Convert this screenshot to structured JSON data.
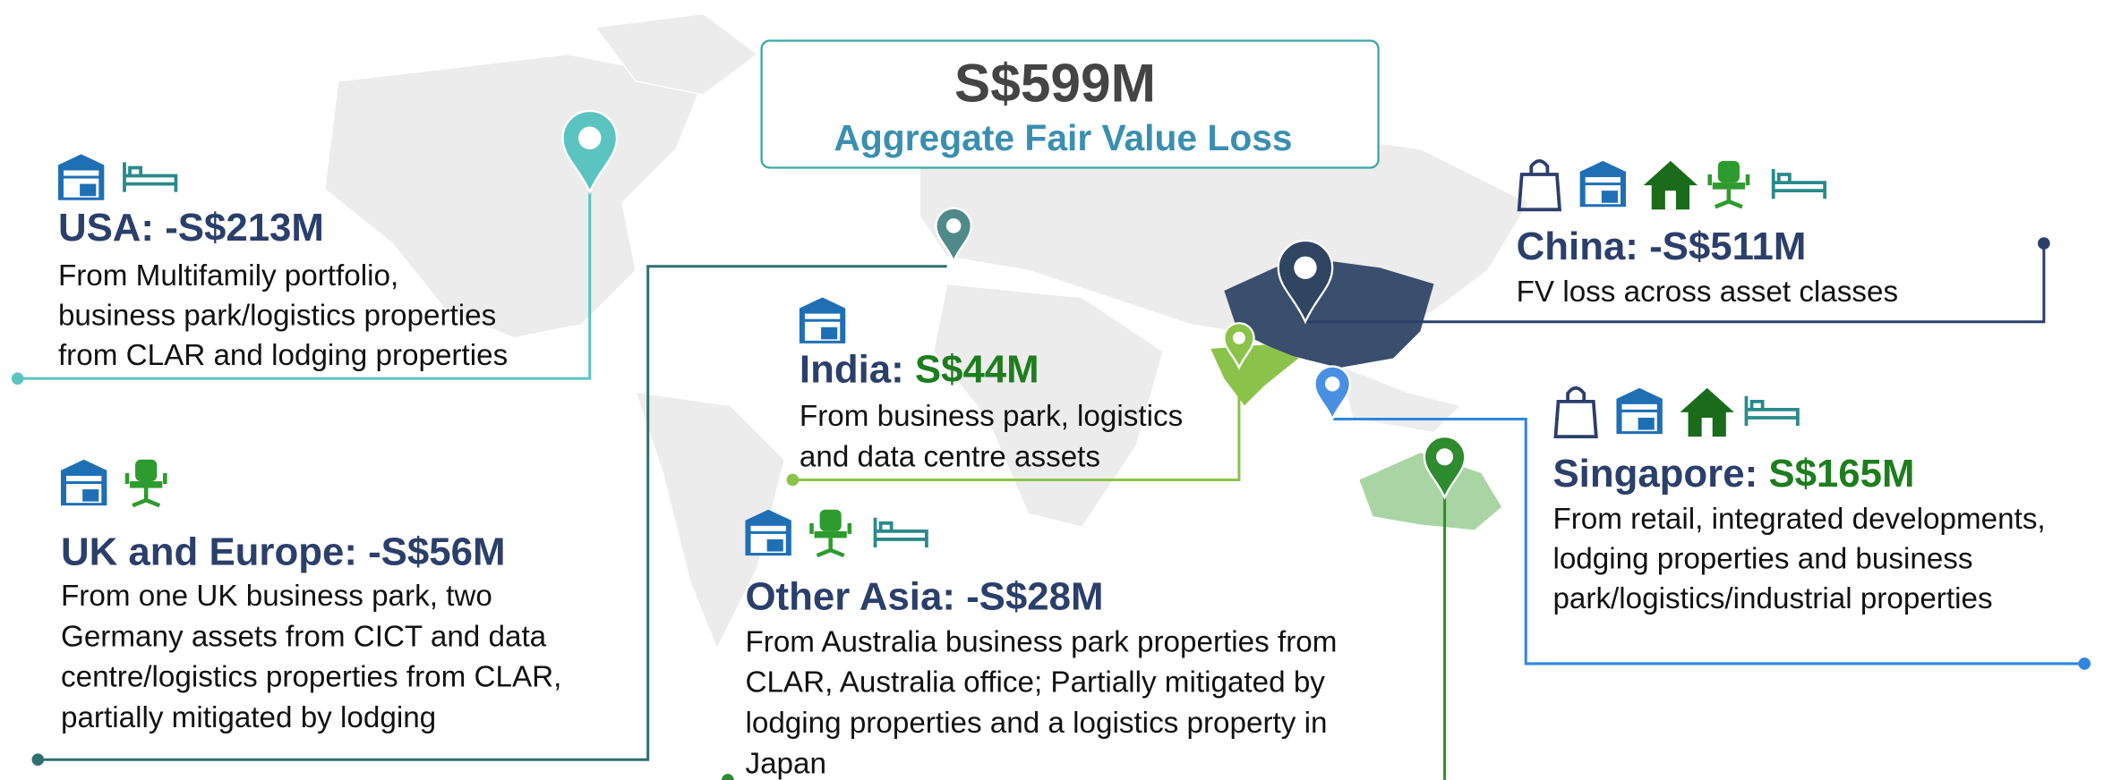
{
  "header": {
    "value": "S$599M",
    "subtitle": "Aggregate Fair Value Loss"
  },
  "regions": [
    {
      "label": "USA:",
      "amount": "-S$213M",
      "description": [
        "From Multifamily portfolio,",
        "business park/logistics properties",
        "from CLAR and lodging properties"
      ]
    },
    {
      "label": "UK and Europe:",
      "amount": "-S$56M",
      "description": [
        "From one UK business park, two",
        "Germany assets from CICT and data",
        "centre/logistics properties from CLAR,",
        "partially mitigated by lodging"
      ]
    },
    {
      "label": "India:",
      "amount": "S$44M",
      "description": [
        "From business park, logistics",
        "and data centre assets"
      ]
    },
    {
      "label": "Other Asia:",
      "amount": "-S$28M",
      "description": [
        "From Australia business park properties from",
        "CLAR, Australia office; Partially mitigated by",
        "lodging properties and a logistics property in",
        "Japan"
      ]
    },
    {
      "label": "China:",
      "amount": "-S$511M",
      "description": [
        "FV loss across asset classes"
      ]
    },
    {
      "label": "Singapore:",
      "amount": "S$165M",
      "description": [
        "From retail, integrated developments,",
        "lodging properties and business",
        "park/logistics/industrial properties"
      ]
    }
  ]
}
